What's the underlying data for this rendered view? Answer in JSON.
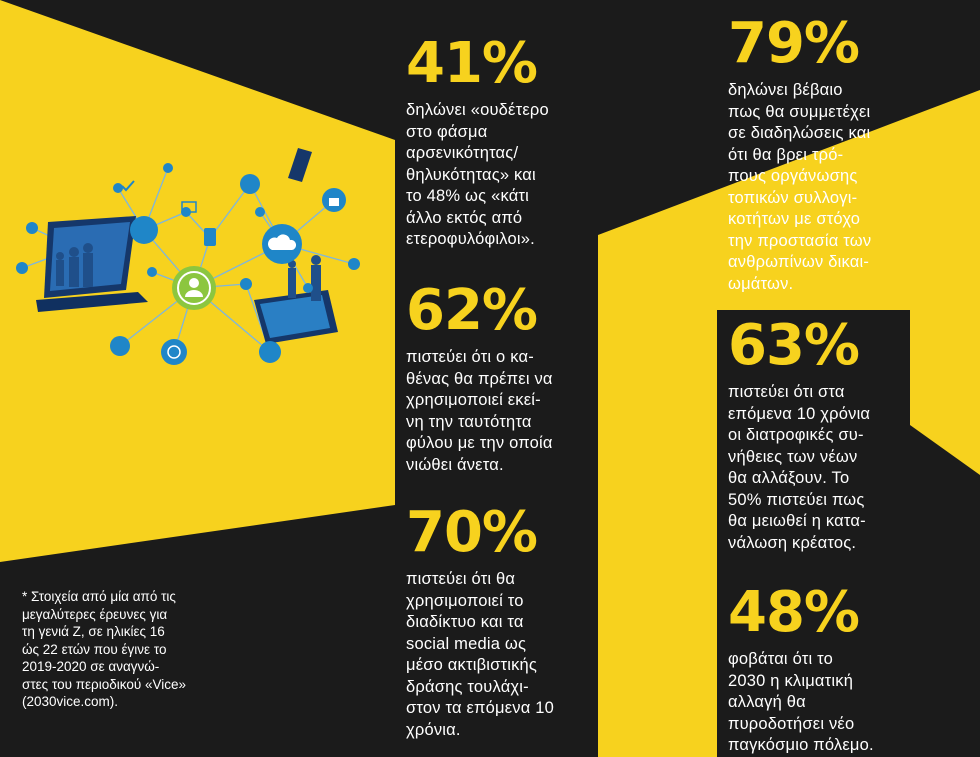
{
  "stats": [
    {
      "pct": "41%",
      "desc": "δηλώνει «ουδέτερο\nστο φάσμα\nαρσενικότητας/\nθηλυκότητας» και\nτο 48% ως «κάτι\nάλλο εκτός από\nετεροφυλόφιλοι»."
    },
    {
      "pct": "62%",
      "desc": "πιστεύει ότι ο κα-\nθένας θα πρέπει να\nχρησιμοποιεί εκεί-\nνη την ταυτότητα\nφύλου με την οποία\nνιώθει άνετα."
    },
    {
      "pct": "70%",
      "desc": "πιστεύει ότι θα\nχρησιμοποιεί το\nδιαδίκτυο και τα\nsocial media ως\nμέσο ακτιβιστικής\nδράσης τουλάχι-\nστον τα επόμενα 10\nχρόνια."
    },
    {
      "pct": "79%",
      "desc": "δηλώνει βέβαιο\nπως θα συμμετέχει\nσε διαδηλώσεις και\nότι θα βρει τρό-\nπους οργάνωσης\nτοπικών συλλογι-\nκοτήτων με στόχο\nτην προστασία των\nανθρωπίνων δικαι-\nωμάτων."
    },
    {
      "pct": "63%",
      "desc": " πιστεύει ότι στα\nεπόμενα 10 χρόνια\nοι διατροφικές συ-\nνήθειες των νέων\nθα αλλάξουν. Το\n50% πιστεύει πως\nθα μειωθεί η κατα-\nνάλωση κρέατος."
    },
    {
      "pct": "48%",
      "desc": "φοβάται ότι το\n2030 η κλιματική\nαλλαγή θα\nπυροδοτήσει νέο\nπαγκόσμιο πόλεμο."
    }
  ],
  "footnote": "* Στοιχεία από μία από τις\nμεγαλύτερες έρευνες για\nτη γενιά Ζ, σε ηλικίες 16\nώς 22 ετών που έγινε το\n2019-2020 σε αναγνώ-\nστες του περιοδικού «Vice»\n(2030vice.com).",
  "colors": {
    "yellow": "#f7d21e",
    "black": "#1b1b1b",
    "illustration_blue": "#1f86c8",
    "illustration_green": "#8cc63f"
  }
}
